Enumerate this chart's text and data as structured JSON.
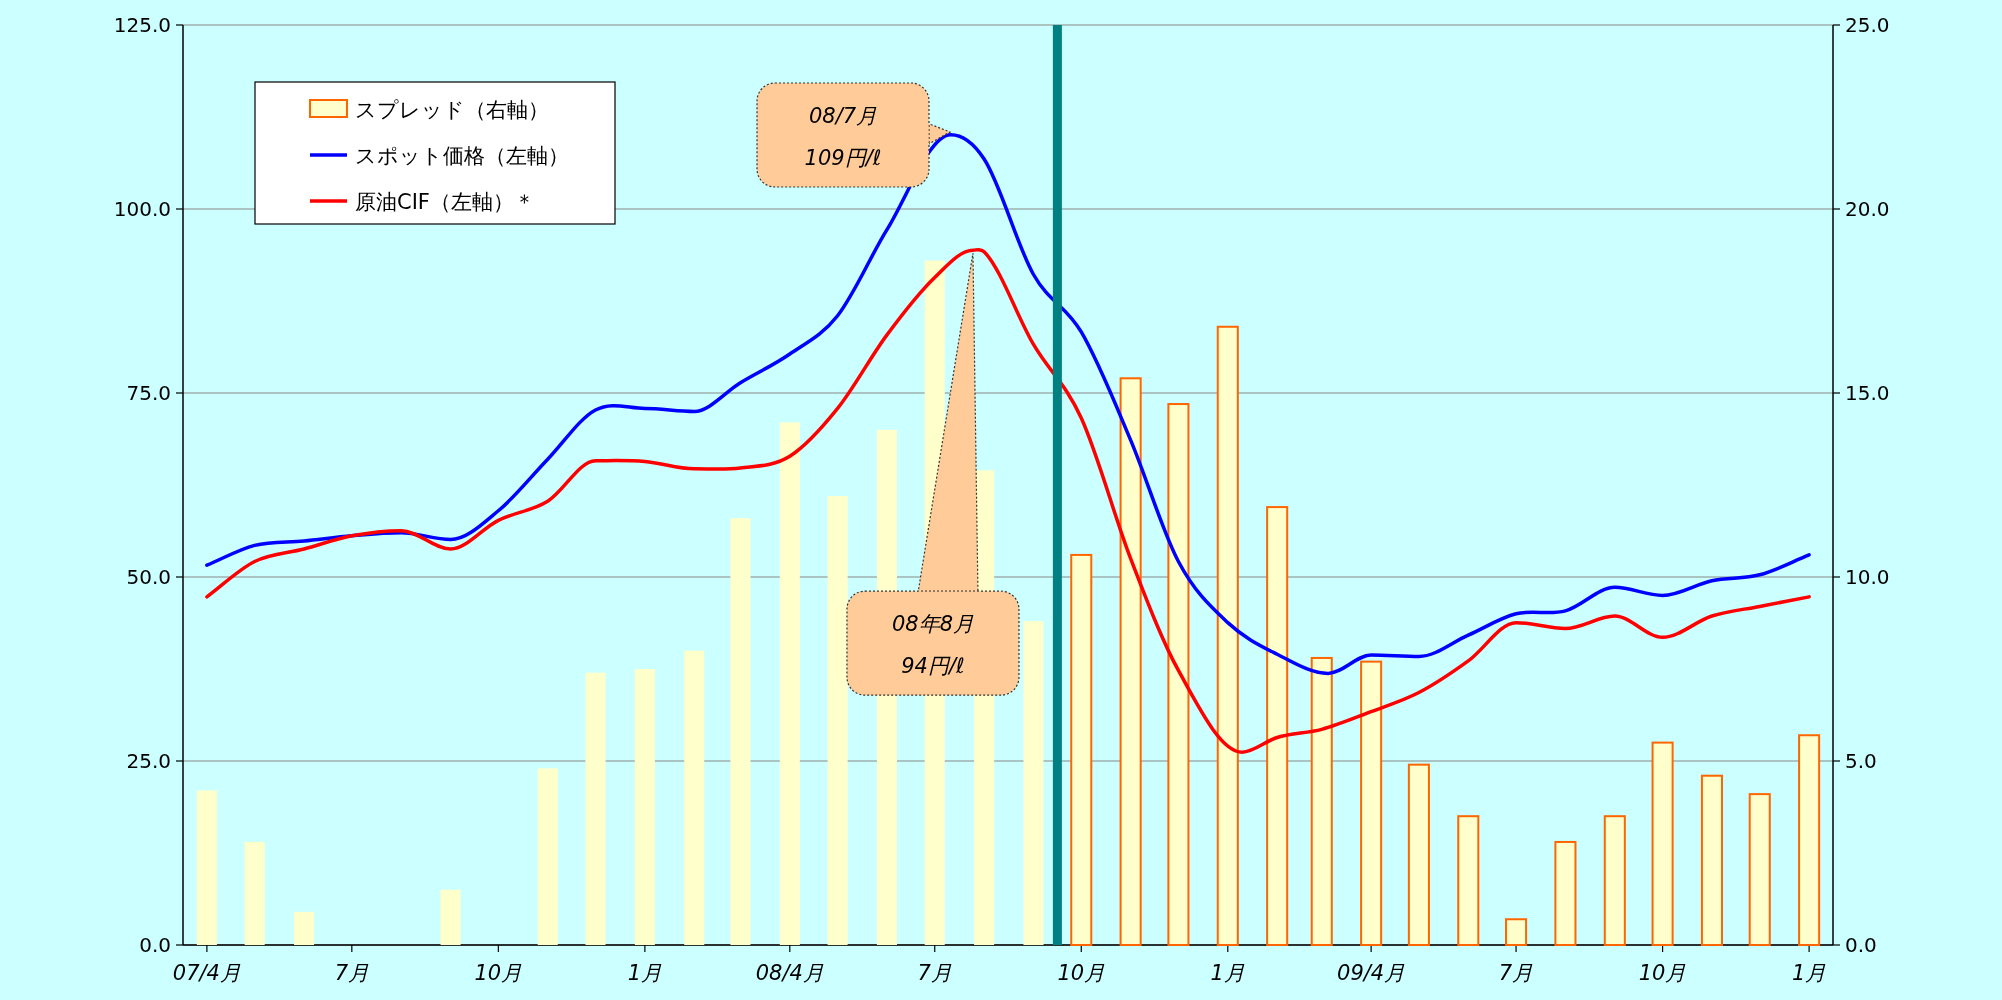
{
  "chart_data": {
    "type": "bar",
    "x": [
      "2007-04",
      "2007-05",
      "2007-06",
      "2007-07",
      "2007-08",
      "2007-09",
      "2007-10",
      "2007-11",
      "2007-12",
      "2008-01",
      "2008-02",
      "2008-03",
      "2008-04",
      "2008-05",
      "2008-06",
      "2008-07",
      "2008-08",
      "2008-09",
      "2008-10",
      "2008-11",
      "2008-12",
      "2009-01",
      "2009-02",
      "2009-03",
      "2009-04",
      "2009-05",
      "2009-06",
      "2009-07",
      "2009-08",
      "2009-09",
      "2009-10",
      "2009-11",
      "2009-12",
      "2010-01"
    ],
    "xlim": [
      "2007-03-17",
      "2010-01-16"
    ],
    "xticks": [
      {
        "value": "2007-04",
        "label": "07/4月"
      },
      {
        "value": "2007-07",
        "label": "7月"
      },
      {
        "value": "2007-10",
        "label": "10月"
      },
      {
        "value": "2008-01",
        "label": "1月"
      },
      {
        "value": "2008-04",
        "label": "08/4月"
      },
      {
        "value": "2008-07",
        "label": "7月"
      },
      {
        "value": "2008-10",
        "label": "10月"
      },
      {
        "value": "2009-01",
        "label": "1月"
      },
      {
        "value": "2009-04",
        "label": "09/4月"
      },
      {
        "value": "2009-07",
        "label": "7月"
      },
      {
        "value": "2009-10",
        "label": "10月"
      },
      {
        "value": "2010-01",
        "label": "1月"
      }
    ],
    "ylim": [
      0,
      125
    ],
    "yticks": [
      {
        "value": 0,
        "label": "0.0"
      },
      {
        "value": 25,
        "label": "25.0"
      },
      {
        "value": 50,
        "label": "50.0"
      },
      {
        "value": 75,
        "label": "75.0"
      },
      {
        "value": 100,
        "label": "100.0"
      },
      {
        "value": 125,
        "label": "125.0"
      }
    ],
    "y2lim": [
      0,
      25
    ],
    "y2ticks": [
      {
        "value": 0,
        "label": "0.0"
      },
      {
        "value": 5,
        "label": "5.0"
      },
      {
        "value": 10,
        "label": "10.0"
      },
      {
        "value": 15,
        "label": "15.0"
      },
      {
        "value": 20,
        "label": "20.0"
      },
      {
        "value": 25,
        "label": "25.0"
      }
    ],
    "grid": "y",
    "legend": "top left",
    "series": [
      {
        "name": "スプレッド（右軸）",
        "axis": "y2",
        "color": "#ffffcc",
        "values": [
          4.2,
          2.8,
          0.9,
          0,
          0,
          1.5,
          0,
          4.8,
          7.4,
          7.5,
          8.0,
          11.6,
          14.2,
          12.2,
          14.0,
          18.6,
          12.9,
          8.8,
          10.6,
          15.4,
          14.7,
          16.8,
          11.9,
          7.8,
          7.7,
          4.9,
          3.5,
          0.7,
          2.8,
          3.5,
          5.5,
          4.6,
          4.1,
          5.7
        ]
      },
      {
        "name": "スポット価格（左軸）",
        "type": "line",
        "axis": "y",
        "color": "#0000ff",
        "x": [
          "2007-04",
          "2007-05",
          "2007-06",
          "2007-07",
          "2007-08",
          "2007-09",
          "2007-10",
          "2007-11",
          "2007-12",
          "2008-01",
          "2008-02",
          "2008-03",
          "2008-04",
          "2008-05",
          "2008-06",
          "2008-07-11",
          "2008-08",
          "2008-09",
          "2008-10",
          "2008-11",
          "2008-12",
          "2009-01",
          "2009-02",
          "2009-03-05",
          "2009-04",
          "2009-05",
          "2009-06",
          "2009-07",
          "2009-08",
          "2009-09",
          "2009-10",
          "2009-11",
          "2009-12",
          "2010-01"
        ],
        "values": [
          51.6,
          54.3,
          54.9,
          55.6,
          56.0,
          55.1,
          59.0,
          66.0,
          72.7,
          72.9,
          72.5,
          76.4,
          80.3,
          85.5,
          97.2,
          110.1,
          106.8,
          91.1,
          83.3,
          68.6,
          52.1,
          43.8,
          39.5,
          36.9,
          39.4,
          39.2,
          42.1,
          45.0,
          45.4,
          48.6,
          47.5,
          49.5,
          50.3,
          53.0
        ]
      },
      {
        "name": "原油CIF（左軸）＊",
        "type": "line",
        "axis": "y",
        "color": "#ff0000",
        "x": [
          "2007-04",
          "2007-05",
          "2007-06",
          "2007-07",
          "2007-08",
          "2007-09",
          "2007-10",
          "2007-11",
          "2007-12",
          "2008-01",
          "2008-02",
          "2008-03",
          "2008-04",
          "2008-05",
          "2008-06",
          "2008-07",
          "2008-07-25",
          "2008-08",
          "2008-09",
          "2008-10",
          "2008-11",
          "2008-12",
          "2009-01-10",
          "2009-02",
          "2009-03",
          "2009-04",
          "2009-05",
          "2009-06",
          "2009-07",
          "2009-08",
          "2009-09",
          "2009-10",
          "2009-11",
          "2009-12",
          "2010-01"
        ],
        "values": [
          47.3,
          52.1,
          53.8,
          55.6,
          56.3,
          53.8,
          57.7,
          60.3,
          65.8,
          65.7,
          64.7,
          64.8,
          66.4,
          72.9,
          82.9,
          90.7,
          94.4,
          94.2,
          81.6,
          71.6,
          52.5,
          37.3,
          26.2,
          28.2,
          29.3,
          31.7,
          34.3,
          38.6,
          43.8,
          43.0,
          44.7,
          41.8,
          44.7,
          46.0,
          47.3
        ]
      }
    ],
    "ref_lines": [
      {
        "axis": "x",
        "value": "2008-09-16",
        "color": "#008080"
      }
    ],
    "annotations": [
      "08/7月\n109円/ℓ",
      {
        "text": "08年8月\n94円/ℓ",
        "x": "2008-07-25",
        "y": 94
      }
    ]
  }
}
